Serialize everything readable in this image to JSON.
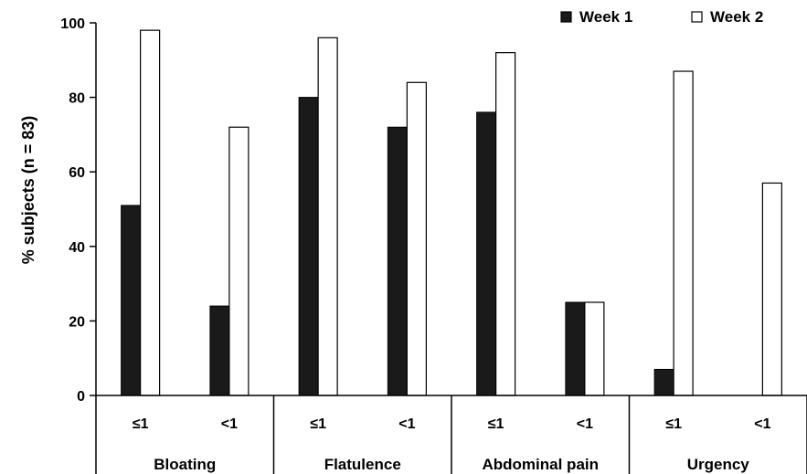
{
  "chart_data": {
    "type": "bar",
    "ylabel": "% subjects (n = 83)",
    "xlabel": "",
    "ylim": [
      0,
      100
    ],
    "yticks": [
      0,
      20,
      40,
      60,
      80,
      100
    ],
    "groups": [
      "Bloating",
      "Flatulence",
      "Abdominal pain",
      "Urgency"
    ],
    "categories": [
      "≤1",
      "<1",
      "≤1",
      "<1",
      "≤1",
      "<1",
      "≤1",
      "<1"
    ],
    "series": [
      {
        "name": "Week 1",
        "color": "#1a1a1a",
        "values": [
          51,
          24,
          80,
          72,
          76,
          25,
          7,
          0
        ]
      },
      {
        "name": "Week 2",
        "color": "#ffffff",
        "values": [
          98,
          72,
          96,
          84,
          92,
          25,
          87,
          57
        ]
      }
    ],
    "legend_position": "top-right",
    "grid": false
  }
}
